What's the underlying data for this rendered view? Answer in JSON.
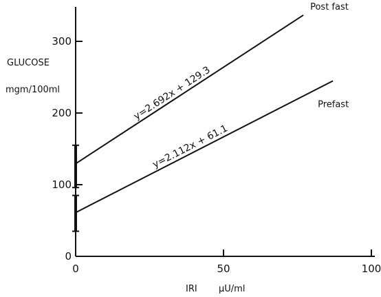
{
  "chart_data": {
    "type": "line",
    "title": "",
    "ylabel": "GLUCOSE",
    "ylabel_unit": "mgm/100ml",
    "xlabel": "IRI",
    "xlabel_unit": "μU/ml",
    "xlim": [
      0,
      100
    ],
    "ylim": [
      0,
      340
    ],
    "x_ticks": [
      0,
      50,
      100
    ],
    "y_ticks": [
      0,
      100,
      200,
      300
    ],
    "grid": false,
    "series": [
      {
        "name": "Post fast",
        "equation": "y=2.692x + 129.3",
        "slope": 2.692,
        "intercept": 129.3,
        "x_range": [
          0,
          77
        ],
        "color": "#111111"
      },
      {
        "name": "Prefast",
        "equation": "y=2.112x + 61.1",
        "slope": 2.112,
        "intercept": 61.1,
        "x_range": [
          0,
          87
        ],
        "color": "#111111"
      }
    ],
    "y_axis_error_segments": [
      [
        35,
        85
      ],
      [
        96,
        155
      ]
    ]
  }
}
